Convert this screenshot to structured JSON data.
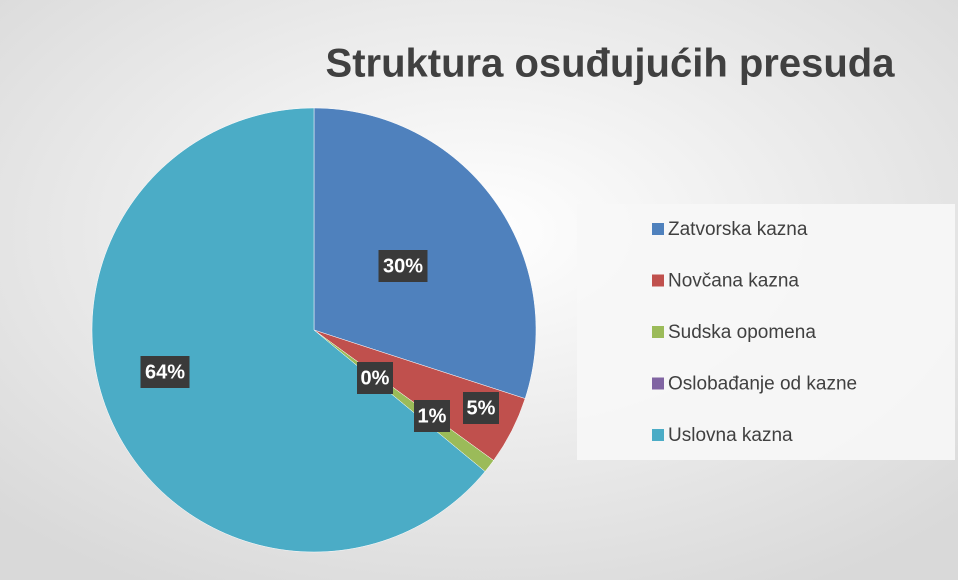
{
  "chart_data": {
    "type": "pie",
    "title": "Struktura osuđujućih presuda",
    "categories": [
      "Zatvorska kazna",
      "Novčana kazna",
      "Sudska opomena",
      "Oslobađanje od kazne",
      "Uslovna kazna"
    ],
    "values": [
      30,
      5,
      1,
      0,
      64
    ],
    "value_labels": [
      "30%",
      "5%",
      "1%",
      "0%",
      "64%"
    ],
    "colors": [
      "#4f81bd",
      "#c0504d",
      "#9bbb59",
      "#8064a2",
      "#4bacc6"
    ],
    "legend": "right"
  }
}
